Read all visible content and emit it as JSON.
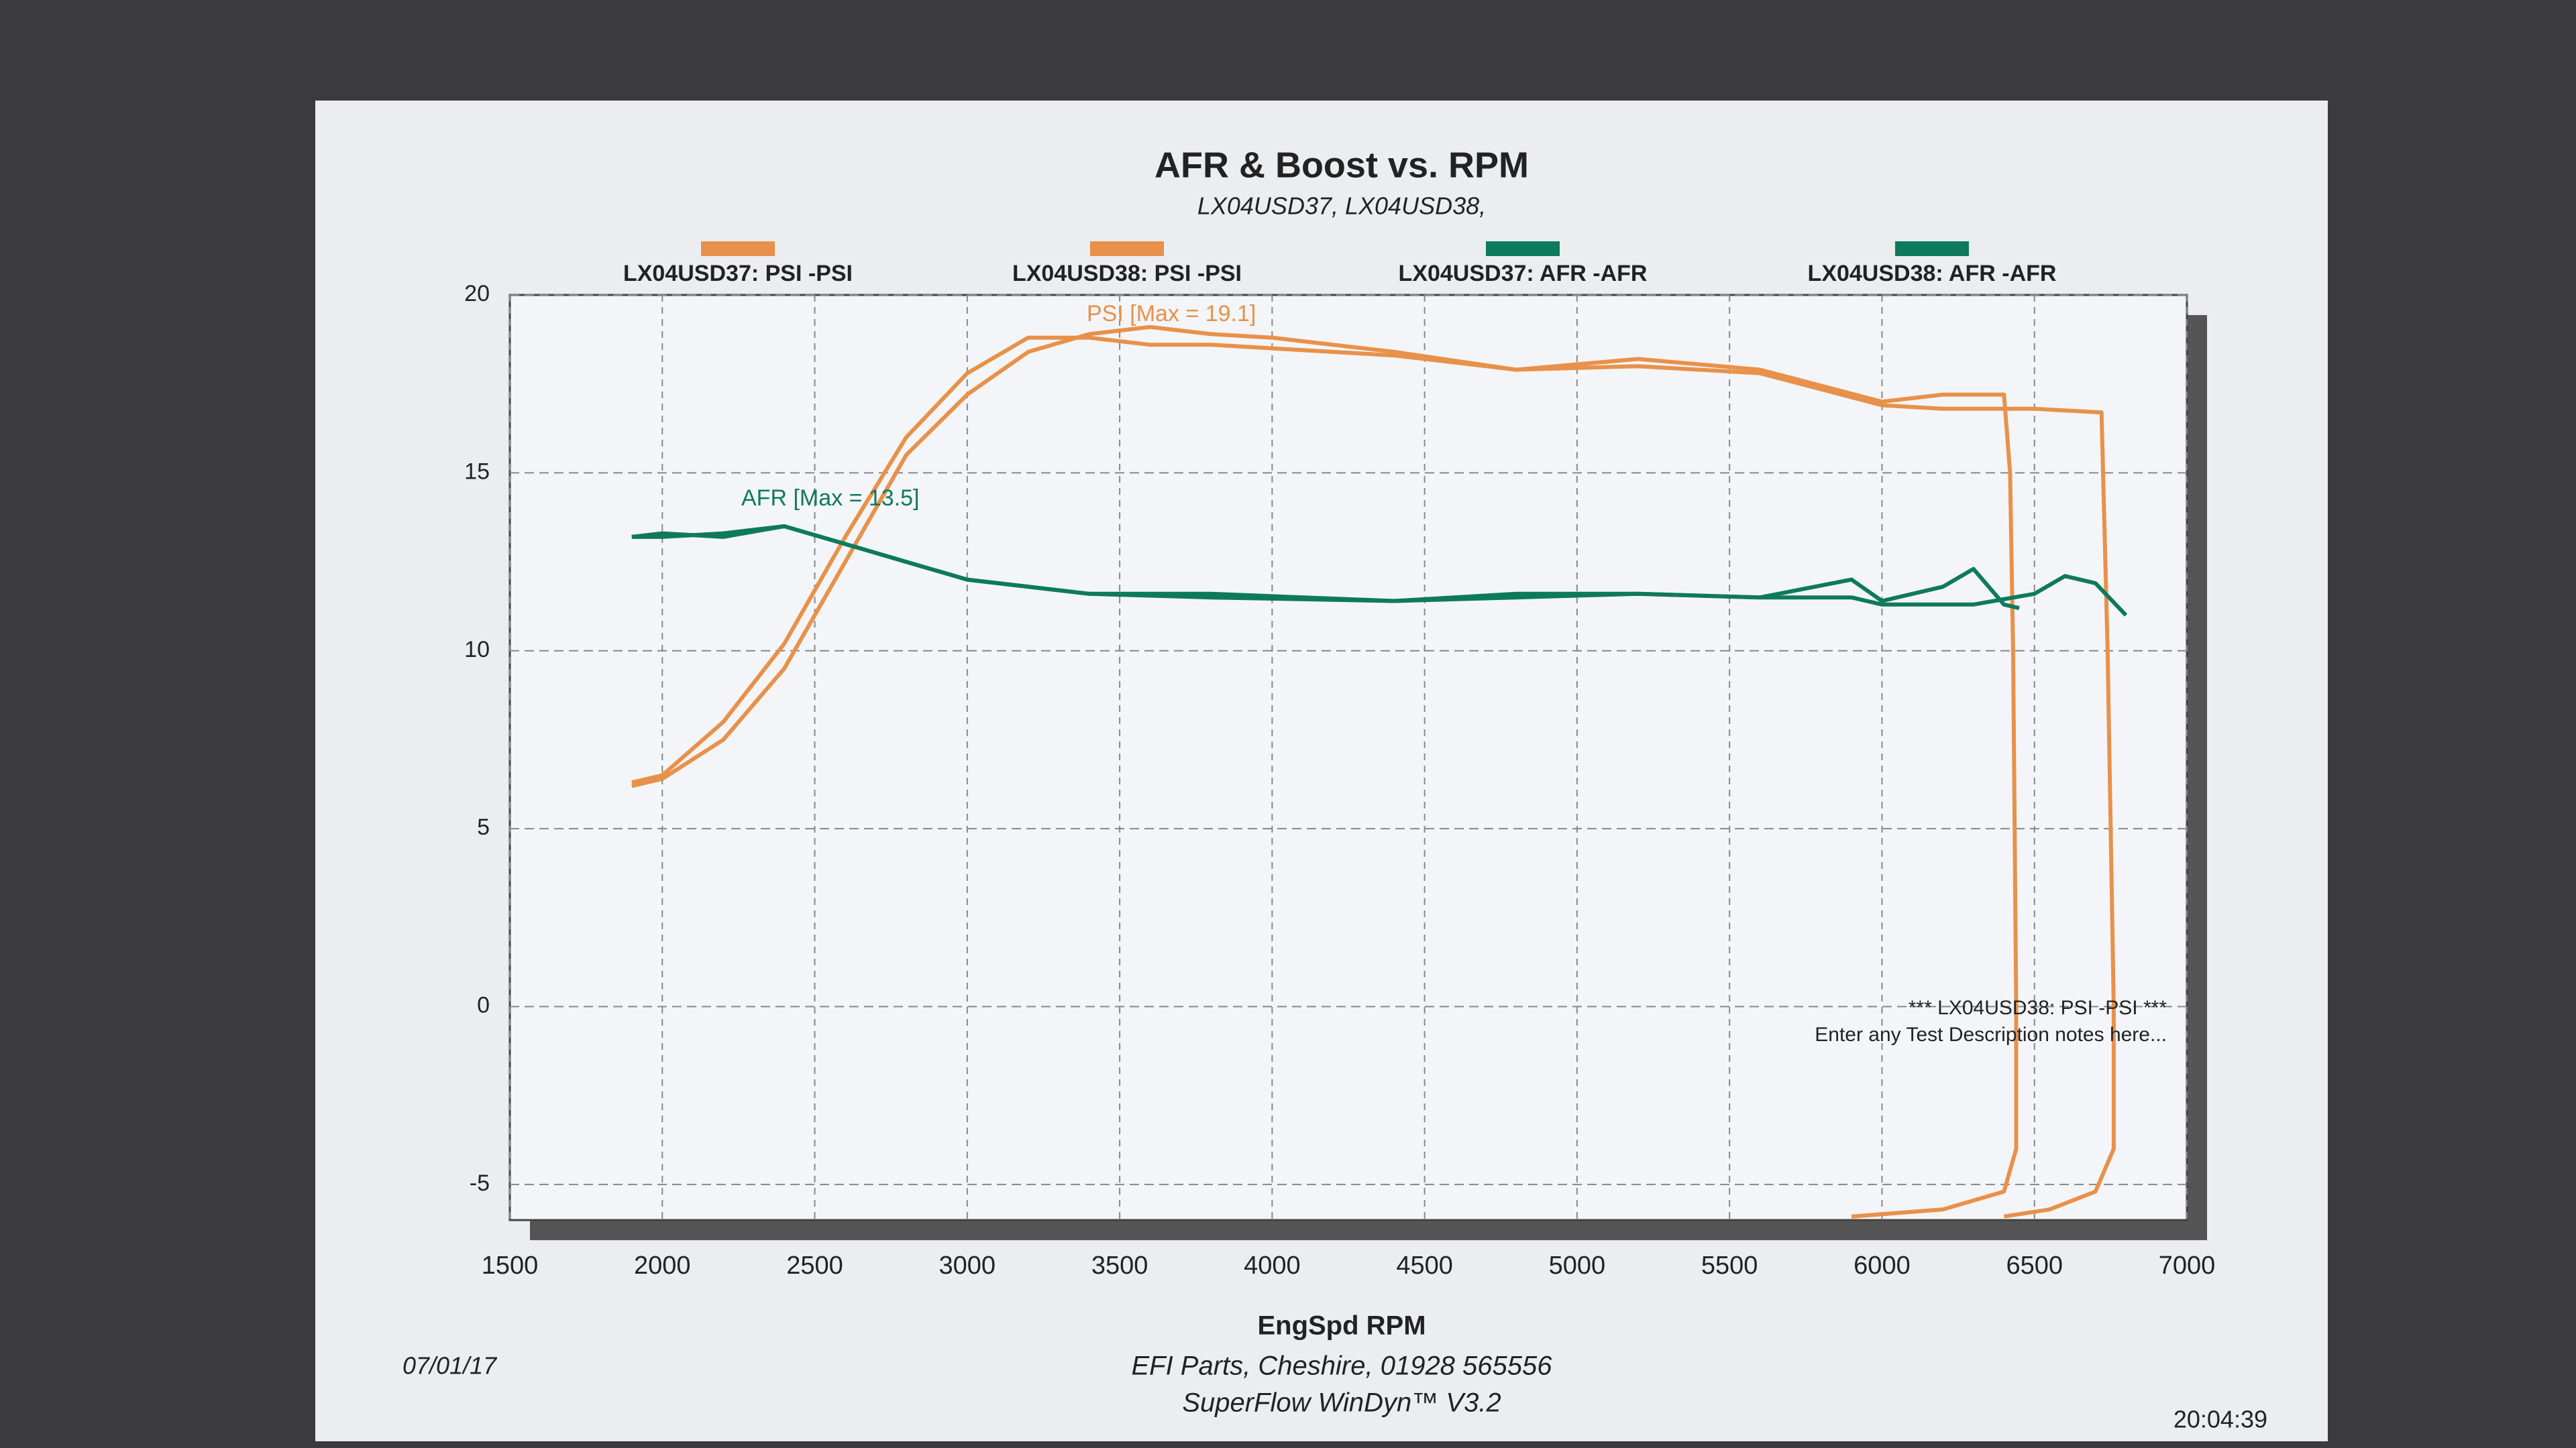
{
  "chart_data": {
    "type": "line",
    "title": "AFR & Boost vs. RPM",
    "subtitle": "LX04USD37, LX04USD38,",
    "x_label": "EngSpd RPM",
    "xlim": [
      1500,
      7000
    ],
    "xticks": [
      1500,
      2000,
      2500,
      3000,
      3500,
      4000,
      4500,
      5000,
      5500,
      6000,
      6500,
      7000
    ],
    "ylim": [
      -6,
      20
    ],
    "yticks": [
      -5,
      0,
      5,
      10,
      15,
      20
    ],
    "grid": true,
    "series": [
      {
        "name": "LX04USD37: PSI  -PSI",
        "color": "#e8914a",
        "x": [
          1900,
          2000,
          2200,
          2400,
          2600,
          2800,
          3000,
          3200,
          3400,
          3600,
          3800,
          4000,
          4400,
          4800,
          5200,
          5600,
          6000,
          6200,
          6400,
          6420,
          6430,
          6440,
          6440,
          6400,
          6200,
          5900
        ],
        "values": [
          6.2,
          6.4,
          7.5,
          9.5,
          12.5,
          15.5,
          17.2,
          18.4,
          18.9,
          19.1,
          18.9,
          18.8,
          18.4,
          17.9,
          18.2,
          17.9,
          17.0,
          17.2,
          17.2,
          15.0,
          10.0,
          0.0,
          -4.0,
          -5.2,
          -5.7,
          -5.9
        ]
      },
      {
        "name": "LX04USD38: PSI  -PSI",
        "color": "#e8914a",
        "x": [
          1900,
          2000,
          2200,
          2400,
          2600,
          2800,
          3000,
          3200,
          3400,
          3600,
          3800,
          4000,
          4400,
          4800,
          5200,
          5600,
          6000,
          6200,
          6500,
          6720,
          6740,
          6760,
          6760,
          6700,
          6550,
          6400
        ],
        "values": [
          6.3,
          6.5,
          8.0,
          10.2,
          13.2,
          16.0,
          17.8,
          18.8,
          18.8,
          18.6,
          18.6,
          18.5,
          18.3,
          17.9,
          18.0,
          17.8,
          16.9,
          16.8,
          16.8,
          16.7,
          10.0,
          0.0,
          -4.0,
          -5.2,
          -5.7,
          -5.9
        ]
      },
      {
        "name": "LX04USD37: AFR  -AFR",
        "color": "#0e7a5c",
        "x": [
          1900,
          2000,
          2200,
          2400,
          2600,
          2800,
          3000,
          3400,
          3800,
          4400,
          4800,
          5200,
          5600,
          5900,
          6000,
          6200,
          6300,
          6400,
          6450
        ],
        "values": [
          13.2,
          13.3,
          13.2,
          13.5,
          13.0,
          12.5,
          12.0,
          11.6,
          11.6,
          11.4,
          11.6,
          11.6,
          11.5,
          12.0,
          11.4,
          11.8,
          12.3,
          11.3,
          11.2
        ]
      },
      {
        "name": "LX04USD38: AFR  -AFR",
        "color": "#0e7a5c",
        "x": [
          1900,
          2000,
          2200,
          2400,
          2600,
          2800,
          3000,
          3400,
          3800,
          4400,
          4800,
          5200,
          5600,
          5900,
          6000,
          6300,
          6500,
          6600,
          6700,
          6800
        ],
        "values": [
          13.2,
          13.2,
          13.3,
          13.5,
          13.0,
          12.5,
          12.0,
          11.6,
          11.5,
          11.4,
          11.5,
          11.6,
          11.5,
          11.5,
          11.3,
          11.3,
          11.6,
          12.1,
          11.9,
          11.0
        ]
      }
    ],
    "annotations": [
      "PSI   [Max = 19.1]",
      "AFR   [Max = 13.5]",
      "*** LX04USD38: PSI  -PSI  ***",
      "Enter any Test Description notes here..."
    ],
    "footer": {
      "date": "07/01/17",
      "company": "EFI Parts, Cheshire, 01928 565556",
      "software": "SuperFlow WinDyn™ V3.2",
      "time": "20:04:39"
    }
  }
}
